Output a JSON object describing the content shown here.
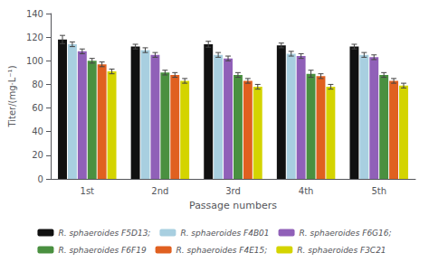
{
  "chart_data": {
    "type": "bar",
    "categories": [
      "1st",
      "2nd",
      "3rd",
      "4th",
      "5th"
    ],
    "xlabel": "Passage numbers",
    "ylabel": "Titer/(mg·L⁻¹)",
    "ylim": [
      0,
      140
    ],
    "yticks": [
      0,
      20,
      40,
      60,
      80,
      100,
      120,
      140
    ],
    "grid": false,
    "legend": "bottom",
    "series": [
      {
        "name": "R. sphaeroides F5D13;",
        "color": "#111111",
        "values": [
          118,
          112,
          114,
          113,
          112
        ],
        "errors": [
          3.5,
          2,
          2.5,
          2,
          2
        ]
      },
      {
        "name": "R. sphaeroides F4B01",
        "color": "#a8cfe0",
        "values": [
          114,
          109,
          105,
          106,
          105
        ],
        "errors": [
          2,
          2,
          2,
          2,
          2
        ]
      },
      {
        "name": "R. sphaeroides F6G16;",
        "color": "#9060b8",
        "values": [
          108,
          105,
          102,
          104,
          103
        ],
        "errors": [
          2,
          2,
          2,
          2,
          2
        ]
      },
      {
        "name": "R. sphaeroides F6F19",
        "color": "#4a9040",
        "values": [
          100,
          90,
          88,
          89,
          88
        ],
        "errors": [
          2,
          2,
          2,
          3,
          2
        ]
      },
      {
        "name": "R. sphaeroides F4E15;",
        "color": "#e06020",
        "values": [
          97,
          88,
          83,
          87,
          83
        ],
        "errors": [
          2,
          2,
          2,
          2,
          2
        ]
      },
      {
        "name": "R. sphaeroides F3C21",
        "color": "#d4d400",
        "values": [
          91,
          83,
          78,
          78,
          79
        ],
        "errors": [
          2,
          2,
          2,
          2,
          2
        ]
      }
    ]
  }
}
